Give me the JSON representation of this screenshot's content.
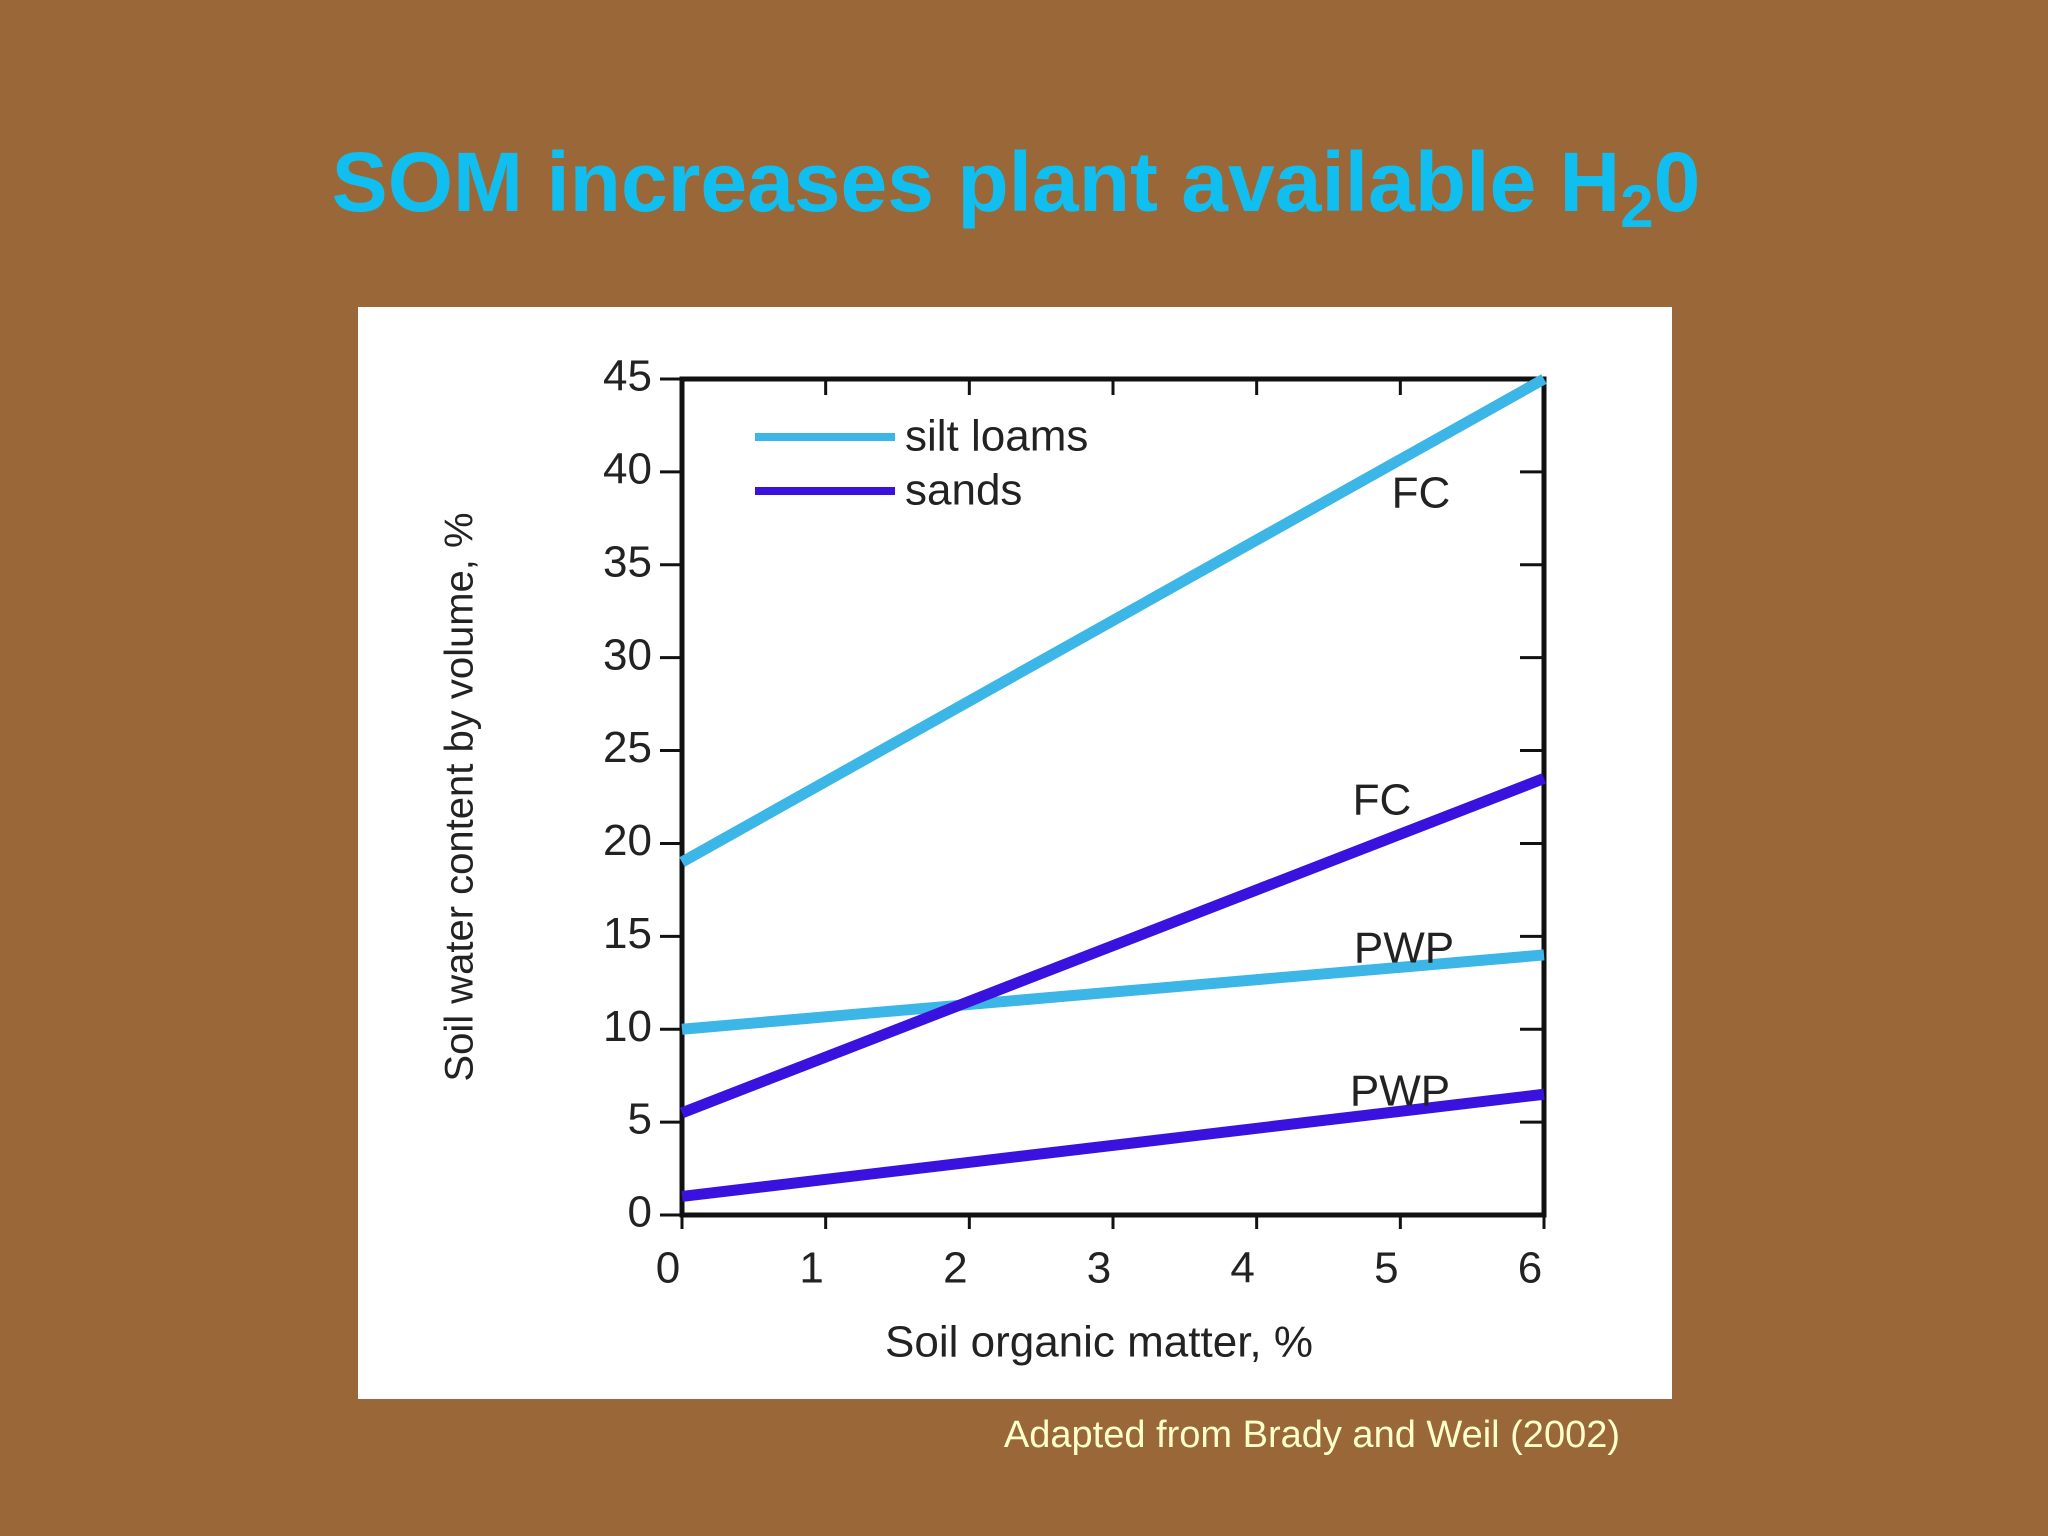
{
  "title": {
    "text": "SOM increases plant available H",
    "subscript": "2",
    "suffix": "0"
  },
  "chart_data": {
    "type": "line",
    "x": [
      0,
      6
    ],
    "xlabel": "Soil organic matter, %",
    "ylabel": "Soil water content by volume, %",
    "xlim": [
      0,
      6
    ],
    "xticks": [
      0,
      1,
      2,
      3,
      4,
      5,
      6
    ],
    "ylim": [
      0,
      45
    ],
    "yticks": [
      0,
      5,
      10,
      15,
      20,
      25,
      30,
      35,
      40,
      45
    ],
    "legend": [
      {
        "name": "silt loams",
        "color": "#3cb6e6"
      },
      {
        "name": "sands",
        "color": "#3a12e0"
      }
    ],
    "series": [
      {
        "label": "FC",
        "color": "#3cb6e6",
        "values": [
          19,
          45
        ]
      },
      {
        "label": "PWP",
        "color": "#3cb6e6",
        "values": [
          10,
          14
        ]
      },
      {
        "label": "FC",
        "color": "#3a12e0",
        "values": [
          5.5,
          23.5
        ]
      },
      {
        "label": "PWP",
        "color": "#3a12e0",
        "values": [
          1,
          6.5
        ]
      }
    ]
  },
  "citation": "Adapted from Brady and Weil (2002)"
}
